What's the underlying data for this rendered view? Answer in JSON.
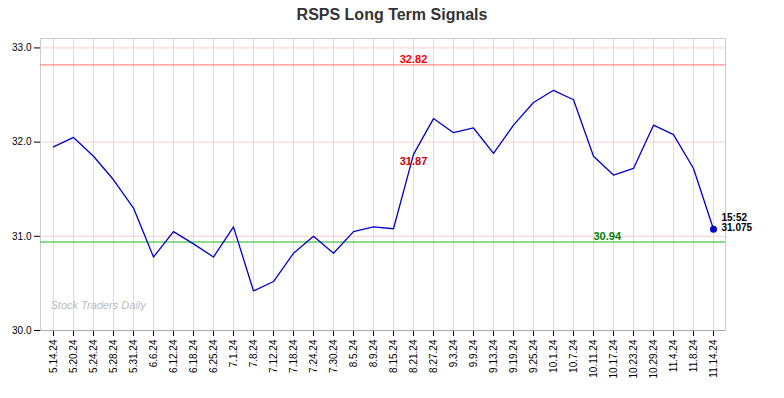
{
  "chart_data": {
    "type": "line",
    "title": "RSPS Long Term Signals",
    "categories": [
      "5.14.24",
      "5.20.24",
      "5.24.24",
      "5.28.24",
      "5.31.24",
      "6.6.24",
      "6.12.24",
      "6.18.24",
      "6.25.24",
      "7.1.24",
      "7.8.24",
      "7.12.24",
      "7.18.24",
      "7.24.24",
      "7.30.24",
      "8.5.24",
      "8.9.24",
      "8.15.24",
      "8.21.24",
      "8.27.24",
      "9.3.24",
      "9.9.24",
      "9.13.24",
      "9.19.24",
      "9.25.24",
      "10.1.24",
      "10.7.24",
      "10.11.24",
      "10.17.24",
      "10.23.24",
      "10.29.24",
      "11.4.24",
      "11.8.24",
      "11.14.24"
    ],
    "values": [
      31.95,
      32.05,
      31.85,
      31.6,
      31.3,
      30.78,
      31.05,
      30.92,
      30.78,
      31.1,
      30.42,
      30.52,
      30.82,
      31.0,
      30.82,
      31.05,
      31.1,
      31.08,
      31.87,
      32.25,
      32.1,
      32.15,
      31.88,
      32.18,
      32.42,
      32.55,
      32.45,
      31.85,
      31.65,
      31.72,
      32.18,
      32.08,
      31.72,
      31.075
    ],
    "color": "#0000cc",
    "ylim": [
      30.0,
      33.1
    ],
    "yticks": [
      30,
      31,
      32,
      33
    ],
    "grid": true,
    "reference_lines": [
      {
        "y": 32.82,
        "color": "#ff8888"
      },
      {
        "y": 30.94,
        "color": "#66cc66"
      },
      {
        "y": 30.0,
        "color": "#aaaaaa"
      }
    ],
    "annotations": [
      {
        "text": "32.82",
        "x": "8.21.24",
        "y": 32.82,
        "color": "red"
      },
      {
        "text": "31.87",
        "x": "8.21.24",
        "y": 31.87,
        "color": "#cc0000"
      },
      {
        "text": "30.94",
        "x": "10.11.24",
        "y": 30.94,
        "color": "green"
      },
      {
        "text": "15:52\n31.075",
        "x": "11.14.24",
        "y": 31.075,
        "color": "black",
        "marker": "dot"
      },
      {
        "text": "Stock Traders Daily",
        "color": "#bbbbbb"
      }
    ]
  }
}
